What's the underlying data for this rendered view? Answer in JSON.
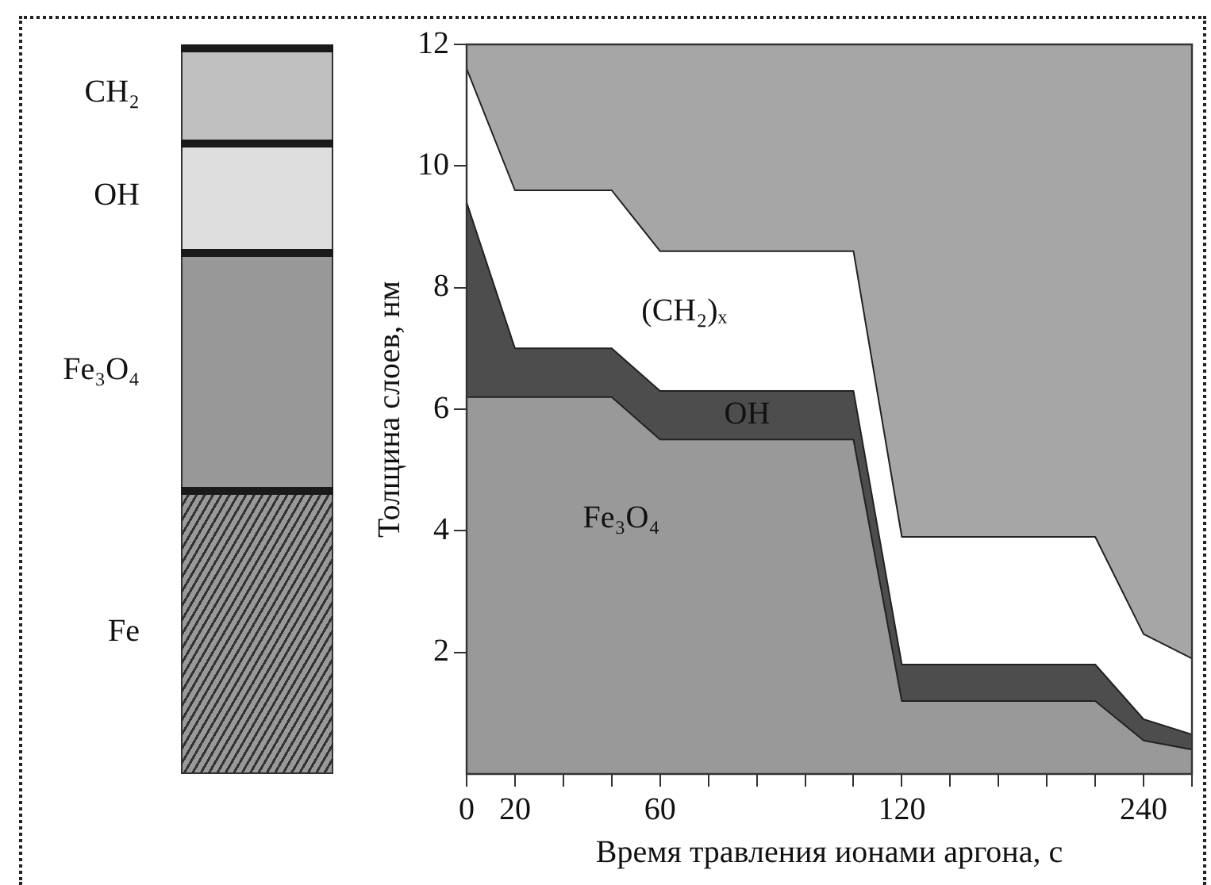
{
  "chart_data": [
    {
      "type": "other",
      "annotations": [
        "CH₂",
        "OH",
        "Fe₃O₄",
        "Fe"
      ]
    },
    {
      "type": "area",
      "stacked": true,
      "xlabel": "Время травления ионами аргона, с",
      "ylabel": "Толщина слоев, нм",
      "categories": [
        "0",
        "20",
        null,
        null,
        "60",
        null,
        null,
        null,
        null,
        "120",
        null,
        null,
        null,
        null,
        "240",
        null
      ],
      "ylim": [
        0,
        12
      ],
      "yticks": [
        2,
        4,
        6,
        8,
        10,
        12
      ],
      "legend": false,
      "series": [
        {
          "name": "Fe₃O₄",
          "color": "#999999",
          "values": [
            6.2,
            6.2,
            6.2,
            6.2,
            5.5,
            5.5,
            5.5,
            5.5,
            5.5,
            1.2,
            1.2,
            1.2,
            1.2,
            1.2,
            0.55,
            0.4
          ]
        },
        {
          "name": "OH",
          "color": "#4d4d4d",
          "values": [
            3.2,
            0.8,
            0.8,
            0.8,
            0.8,
            0.8,
            0.8,
            0.8,
            0.8,
            0.6,
            0.6,
            0.6,
            0.6,
            0.6,
            0.35,
            0.25
          ]
        },
        {
          "name": "(CH₂)ₓ",
          "color": "#ffffff",
          "values": [
            2.2,
            2.6,
            2.6,
            2.6,
            2.3,
            2.3,
            2.3,
            2.3,
            2.3,
            2.1,
            2.1,
            2.1,
            2.1,
            2.1,
            1.4,
            1.25
          ]
        }
      ]
    }
  ]
}
